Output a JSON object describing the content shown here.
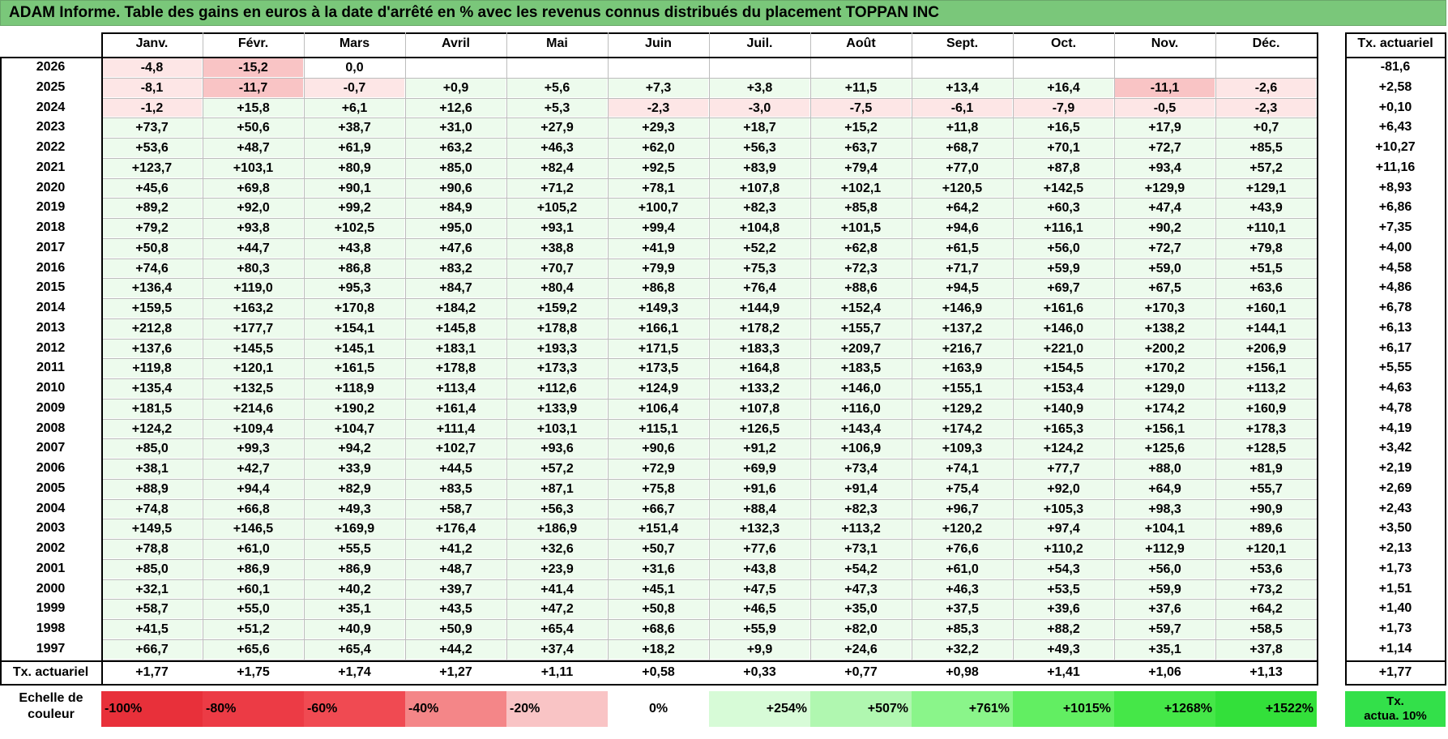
{
  "title": "ADAM Informe. Table des gains en euros à la date d'arrêté en % avec les revenus connus distribués du placement TOPPAN INC",
  "months": [
    "Janv.",
    "Févr.",
    "Mars",
    "Avril",
    "Mai",
    "Juin",
    "Juil.",
    "Août",
    "Sept.",
    "Oct.",
    "Nov.",
    "Déc."
  ],
  "tx_header": "Tx. actuariel",
  "rows": [
    {
      "year": "2026",
      "values": [
        "-4,8",
        "-15,2",
        "0,0",
        "",
        "",
        "",
        "",
        "",
        "",
        "",
        "",
        ""
      ],
      "tx": "-81,6"
    },
    {
      "year": "2025",
      "values": [
        "-8,1",
        "-11,7",
        "-0,7",
        "+0,9",
        "+5,6",
        "+7,3",
        "+3,8",
        "+11,5",
        "+13,4",
        "+16,4",
        "-11,1",
        "-2,6"
      ],
      "tx": "+2,58"
    },
    {
      "year": "2024",
      "values": [
        "-1,2",
        "+15,8",
        "+6,1",
        "+12,6",
        "+5,3",
        "-2,3",
        "-3,0",
        "-7,5",
        "-6,1",
        "-7,9",
        "-0,5",
        "-2,3"
      ],
      "tx": "+0,10"
    },
    {
      "year": "2023",
      "values": [
        "+73,7",
        "+50,6",
        "+38,7",
        "+31,0",
        "+27,9",
        "+29,3",
        "+18,7",
        "+15,2",
        "+11,8",
        "+16,5",
        "+17,9",
        "+0,7"
      ],
      "tx": "+6,43"
    },
    {
      "year": "2022",
      "values": [
        "+53,6",
        "+48,7",
        "+61,9",
        "+63,2",
        "+46,3",
        "+62,0",
        "+56,3",
        "+63,7",
        "+68,7",
        "+70,1",
        "+72,7",
        "+85,5"
      ],
      "tx": "+10,27"
    },
    {
      "year": "2021",
      "values": [
        "+123,7",
        "+103,1",
        "+80,9",
        "+85,0",
        "+82,4",
        "+92,5",
        "+83,9",
        "+79,4",
        "+77,0",
        "+87,8",
        "+93,4",
        "+57,2"
      ],
      "tx": "+11,16"
    },
    {
      "year": "2020",
      "values": [
        "+45,6",
        "+69,8",
        "+90,1",
        "+90,6",
        "+71,2",
        "+78,1",
        "+107,8",
        "+102,1",
        "+120,5",
        "+142,5",
        "+129,9",
        "+129,1"
      ],
      "tx": "+8,93"
    },
    {
      "year": "2019",
      "values": [
        "+89,2",
        "+92,0",
        "+99,2",
        "+84,9",
        "+105,2",
        "+100,7",
        "+82,3",
        "+85,8",
        "+64,2",
        "+60,3",
        "+47,4",
        "+43,9"
      ],
      "tx": "+6,86"
    },
    {
      "year": "2018",
      "values": [
        "+79,2",
        "+93,8",
        "+102,5",
        "+95,0",
        "+93,1",
        "+99,4",
        "+104,8",
        "+101,5",
        "+94,6",
        "+116,1",
        "+90,2",
        "+110,1"
      ],
      "tx": "+7,35"
    },
    {
      "year": "2017",
      "values": [
        "+50,8",
        "+44,7",
        "+43,8",
        "+47,6",
        "+38,8",
        "+41,9",
        "+52,2",
        "+62,8",
        "+61,5",
        "+56,0",
        "+72,7",
        "+79,8"
      ],
      "tx": "+4,00"
    },
    {
      "year": "2016",
      "values": [
        "+74,6",
        "+80,3",
        "+86,8",
        "+83,2",
        "+70,7",
        "+79,9",
        "+75,3",
        "+72,3",
        "+71,7",
        "+59,9",
        "+59,0",
        "+51,5"
      ],
      "tx": "+4,58"
    },
    {
      "year": "2015",
      "values": [
        "+136,4",
        "+119,0",
        "+95,3",
        "+84,7",
        "+80,4",
        "+86,8",
        "+76,4",
        "+88,6",
        "+94,5",
        "+69,7",
        "+67,5",
        "+63,6"
      ],
      "tx": "+4,86"
    },
    {
      "year": "2014",
      "values": [
        "+159,5",
        "+163,2",
        "+170,8",
        "+184,2",
        "+159,2",
        "+149,3",
        "+144,9",
        "+152,4",
        "+146,9",
        "+161,6",
        "+170,3",
        "+160,1"
      ],
      "tx": "+6,78"
    },
    {
      "year": "2013",
      "values": [
        "+212,8",
        "+177,7",
        "+154,1",
        "+145,8",
        "+178,8",
        "+166,1",
        "+178,2",
        "+155,7",
        "+137,2",
        "+146,0",
        "+138,2",
        "+144,1"
      ],
      "tx": "+6,13"
    },
    {
      "year": "2012",
      "values": [
        "+137,6",
        "+145,5",
        "+145,1",
        "+183,1",
        "+193,3",
        "+171,5",
        "+183,3",
        "+209,7",
        "+216,7",
        "+221,0",
        "+200,2",
        "+206,9"
      ],
      "tx": "+6,17"
    },
    {
      "year": "2011",
      "values": [
        "+119,8",
        "+120,1",
        "+161,5",
        "+178,8",
        "+173,3",
        "+173,5",
        "+164,8",
        "+183,5",
        "+163,9",
        "+154,5",
        "+170,2",
        "+156,1"
      ],
      "tx": "+5,55"
    },
    {
      "year": "2010",
      "values": [
        "+135,4",
        "+132,5",
        "+118,9",
        "+113,4",
        "+112,6",
        "+124,9",
        "+133,2",
        "+146,0",
        "+155,1",
        "+153,4",
        "+129,0",
        "+113,2"
      ],
      "tx": "+4,63"
    },
    {
      "year": "2009",
      "values": [
        "+181,5",
        "+214,6",
        "+190,2",
        "+161,4",
        "+133,9",
        "+106,4",
        "+107,8",
        "+116,0",
        "+129,2",
        "+140,9",
        "+174,2",
        "+160,9"
      ],
      "tx": "+4,78"
    },
    {
      "year": "2008",
      "values": [
        "+124,2",
        "+109,4",
        "+104,7",
        "+111,4",
        "+103,1",
        "+115,1",
        "+126,5",
        "+143,4",
        "+174,2",
        "+165,3",
        "+156,1",
        "+178,3"
      ],
      "tx": "+4,19"
    },
    {
      "year": "2007",
      "values": [
        "+85,0",
        "+99,3",
        "+94,2",
        "+102,7",
        "+93,6",
        "+90,6",
        "+91,2",
        "+106,9",
        "+109,3",
        "+124,2",
        "+125,6",
        "+128,5"
      ],
      "tx": "+3,42"
    },
    {
      "year": "2006",
      "values": [
        "+38,1",
        "+42,7",
        "+33,9",
        "+44,5",
        "+57,2",
        "+72,9",
        "+69,9",
        "+73,4",
        "+74,1",
        "+77,7",
        "+88,0",
        "+81,9"
      ],
      "tx": "+2,19"
    },
    {
      "year": "2005",
      "values": [
        "+88,9",
        "+94,4",
        "+82,9",
        "+83,5",
        "+87,1",
        "+75,8",
        "+91,6",
        "+91,4",
        "+75,4",
        "+92,0",
        "+64,9",
        "+55,7"
      ],
      "tx": "+2,69"
    },
    {
      "year": "2004",
      "values": [
        "+74,8",
        "+66,8",
        "+49,3",
        "+58,7",
        "+56,3",
        "+66,7",
        "+88,4",
        "+82,3",
        "+96,7",
        "+105,3",
        "+98,3",
        "+90,9"
      ],
      "tx": "+2,43"
    },
    {
      "year": "2003",
      "values": [
        "+149,5",
        "+146,5",
        "+169,9",
        "+176,4",
        "+186,9",
        "+151,4",
        "+132,3",
        "+113,2",
        "+120,2",
        "+97,4",
        "+104,1",
        "+89,6"
      ],
      "tx": "+3,50"
    },
    {
      "year": "2002",
      "values": [
        "+78,8",
        "+61,0",
        "+55,5",
        "+41,2",
        "+32,6",
        "+50,7",
        "+77,6",
        "+73,1",
        "+76,6",
        "+110,2",
        "+112,9",
        "+120,1"
      ],
      "tx": "+2,13"
    },
    {
      "year": "2001",
      "values": [
        "+85,0",
        "+86,9",
        "+86,9",
        "+48,7",
        "+23,9",
        "+31,6",
        "+43,8",
        "+54,2",
        "+61,0",
        "+54,3",
        "+56,0",
        "+53,6"
      ],
      "tx": "+1,73"
    },
    {
      "year": "2000",
      "values": [
        "+32,1",
        "+60,1",
        "+40,2",
        "+39,7",
        "+41,4",
        "+45,1",
        "+47,5",
        "+47,3",
        "+46,3",
        "+53,5",
        "+59,9",
        "+73,2"
      ],
      "tx": "+1,51"
    },
    {
      "year": "1999",
      "values": [
        "+58,7",
        "+55,0",
        "+35,1",
        "+43,5",
        "+47,2",
        "+50,8",
        "+46,5",
        "+35,0",
        "+37,5",
        "+39,6",
        "+37,6",
        "+64,2"
      ],
      "tx": "+1,40"
    },
    {
      "year": "1998",
      "values": [
        "+41,5",
        "+51,2",
        "+40,9",
        "+50,9",
        "+65,4",
        "+68,6",
        "+55,9",
        "+82,0",
        "+85,3",
        "+88,2",
        "+59,7",
        "+58,5"
      ],
      "tx": "+1,73"
    },
    {
      "year": "1997",
      "values": [
        "+66,7",
        "+65,6",
        "+65,4",
        "+44,2",
        "+37,4",
        "+18,2",
        "+9,9",
        "+24,6",
        "+32,2",
        "+49,3",
        "+35,1",
        "+37,8"
      ],
      "tx": "+1,14"
    }
  ],
  "footer": {
    "label": "Tx. actuariel",
    "values": [
      "+1,77",
      "+1,75",
      "+1,74",
      "+1,27",
      "+1,11",
      "+0,58",
      "+0,33",
      "+0,77",
      "+0,98",
      "+1,41",
      "+1,06",
      "+1,13"
    ],
    "tx": "+1,77"
  },
  "scale": {
    "label": "Echelle de couleur",
    "items": [
      {
        "text": "-100%",
        "color": "#e8303a",
        "align": "left"
      },
      {
        "text": "-80%",
        "color": "#ec3b45",
        "align": "left"
      },
      {
        "text": "-60%",
        "color": "#f04a52",
        "align": "left"
      },
      {
        "text": "-40%",
        "color": "#f48688",
        "align": "left"
      },
      {
        "text": "-20%",
        "color": "#f9c4c5",
        "align": "left"
      },
      {
        "text": "0%",
        "color": "#ffffff",
        "align": "center"
      },
      {
        "text": "+254%",
        "color": "#d7fbd7",
        "align": "right"
      },
      {
        "text": "+507%",
        "color": "#b0f7b0",
        "align": "right"
      },
      {
        "text": "+761%",
        "color": "#8af58a",
        "align": "right"
      },
      {
        "text": "+1015%",
        "color": "#62ee62",
        "align": "right"
      },
      {
        "text": "+1268%",
        "color": "#45e748",
        "align": "right"
      },
      {
        "text": "+1522%",
        "color": "#33e03a",
        "align": "right"
      }
    ],
    "tx_label_line1": "Tx.",
    "tx_label_line2": "actua. 10%"
  },
  "colors": {
    "title_bg": "#7ac77a",
    "pos_light": "#edfbed",
    "neg_light": "#fde6e6",
    "neg_mid": "#f9c4c5"
  }
}
